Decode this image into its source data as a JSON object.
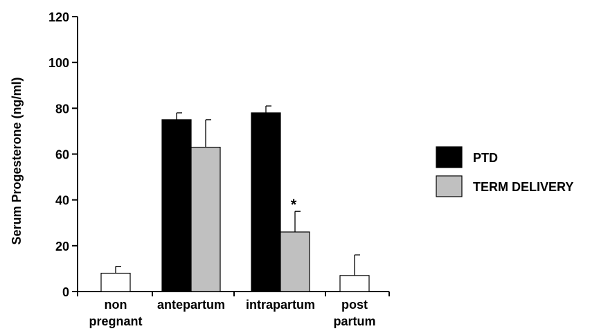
{
  "chart_data": {
    "type": "bar",
    "ylabel": "Serum Progesterone  (ng/ml)",
    "xlabel": "",
    "ylim": [
      0,
      120
    ],
    "yticks": [
      0,
      20,
      40,
      60,
      80,
      100,
      120
    ],
    "y_tick_labels": [
      "0",
      "20",
      "40",
      "60",
      "80",
      "100",
      "120"
    ],
    "grid": false,
    "legend_position": "right",
    "categories": [
      {
        "lines": [
          "non",
          "pregnant"
        ]
      },
      {
        "lines": [
          "antepartum"
        ]
      },
      {
        "lines": [
          "intrapartum"
        ]
      },
      {
        "lines": [
          "post",
          "partum"
        ]
      }
    ],
    "series": [
      {
        "name": "PTD",
        "color": "#000000",
        "values": [
          null,
          75,
          78,
          null
        ],
        "errors": [
          null,
          3,
          3,
          null
        ]
      },
      {
        "name": "TERM DELIVERY",
        "color": "#c0c0c0",
        "values": [
          null,
          63,
          26,
          null
        ],
        "errors": [
          null,
          12,
          9,
          null
        ]
      },
      {
        "name": "",
        "color": "#ffffff",
        "values": [
          8,
          null,
          null,
          7
        ],
        "errors": [
          3,
          null,
          null,
          9
        ]
      }
    ],
    "legend": [
      {
        "label": "PTD",
        "color": "#000000"
      },
      {
        "label": "TERM DELIVERY",
        "color": "#c0c0c0"
      }
    ],
    "annotations": [
      {
        "text": "*",
        "category_index": 2,
        "series_index": 1
      }
    ]
  }
}
